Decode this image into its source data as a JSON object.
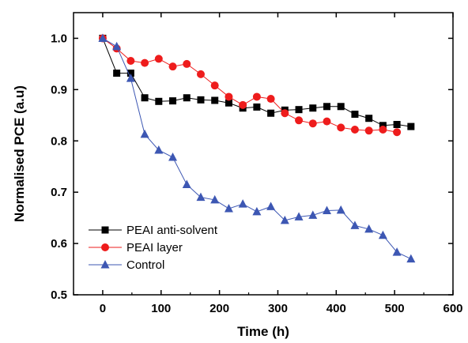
{
  "chart_data": {
    "type": "line",
    "title": "",
    "xlabel": "Time (h)",
    "ylabel": "Normalised PCE (a.u)",
    "xlim": [
      -50,
      600
    ],
    "ylim": [
      0.5,
      1.05
    ],
    "xticks": [
      0,
      100,
      200,
      300,
      400,
      500,
      600
    ],
    "yticks": [
      0.5,
      0.6,
      0.7,
      0.8,
      0.9,
      1.0
    ],
    "grid": false,
    "legend_position": "bottom-left",
    "series": [
      {
        "name": "PEAI anti-solvent",
        "color": "#000000",
        "marker": "square",
        "x": [
          0,
          24,
          48,
          72,
          96,
          120,
          144,
          168,
          192,
          216,
          240,
          264,
          288,
          312,
          336,
          360,
          384,
          408,
          432,
          456,
          480,
          504,
          528
        ],
        "y": [
          1.0,
          0.932,
          0.932,
          0.884,
          0.877,
          0.878,
          0.884,
          0.88,
          0.879,
          0.874,
          0.864,
          0.866,
          0.854,
          0.86,
          0.861,
          0.864,
          0.867,
          0.867,
          0.852,
          0.844,
          0.83,
          0.832,
          0.828
        ]
      },
      {
        "name": "PEAI layer",
        "color": "#ee1c1c",
        "marker": "circle",
        "x": [
          0,
          24,
          48,
          72,
          96,
          120,
          144,
          168,
          192,
          216,
          240,
          264,
          288,
          312,
          336,
          360,
          384,
          408,
          432,
          456,
          480,
          504
        ],
        "y": [
          1.0,
          0.98,
          0.956,
          0.952,
          0.96,
          0.945,
          0.95,
          0.93,
          0.908,
          0.886,
          0.87,
          0.886,
          0.882,
          0.854,
          0.84,
          0.834,
          0.838,
          0.826,
          0.822,
          0.82,
          0.822,
          0.817
        ]
      },
      {
        "name": "Control",
        "color": "#3d57b3",
        "marker": "triangle",
        "x": [
          0,
          24,
          48,
          72,
          96,
          120,
          144,
          168,
          192,
          216,
          240,
          264,
          288,
          312,
          336,
          360,
          384,
          408,
          432,
          456,
          480,
          504,
          528
        ],
        "y": [
          1.0,
          0.984,
          0.922,
          0.813,
          0.782,
          0.768,
          0.715,
          0.69,
          0.685,
          0.668,
          0.677,
          0.662,
          0.672,
          0.645,
          0.652,
          0.655,
          0.664,
          0.665,
          0.635,
          0.628,
          0.616,
          0.583,
          0.57
        ]
      }
    ]
  }
}
